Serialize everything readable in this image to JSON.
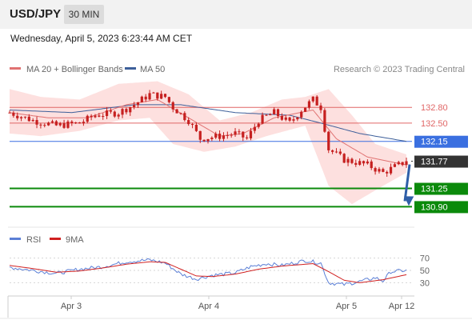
{
  "header": {
    "pair": "USD/JPY",
    "timeframe": "30 MIN",
    "datetime": "Wednesday, April 5, 2023 6:23:44 AM CET"
  },
  "legend": {
    "ma20": "MA 20 + Bollinger Bands",
    "ma50": "MA 50",
    "credit": "Research © 2023 Trading Central",
    "rsi": "RSI",
    "rsi_ma": "9MA"
  },
  "colors": {
    "candle": "#c62020",
    "ma20": "#e07272",
    "ma50": "#3d5f9a",
    "bollinger_fill": "#fde0df",
    "resistance": "#e06666",
    "pivot": "#3a6fe0",
    "support": "#0b8a0b",
    "current": "#333333",
    "forecast_arrow": "#2f5fa8",
    "rsi": "#5b7fd6",
    "rsi_ma": "#d02020"
  },
  "chart_data": [
    {
      "type": "candlestick",
      "title": "USD/JPY 30 MIN",
      "y_range": [
        130.6,
        133.4
      ],
      "x_ticks": [
        "Apr 3",
        "Apr 4",
        "Apr 5",
        "Apr 12"
      ],
      "price_segments": [
        [
          0,
          132.7
        ],
        [
          6,
          132.55
        ],
        [
          12,
          132.45
        ],
        [
          18,
          132.5
        ],
        [
          22,
          132.65
        ],
        [
          28,
          132.7
        ],
        [
          32,
          132.85
        ],
        [
          36,
          133.05
        ],
        [
          40,
          133.0
        ],
        [
          42,
          132.8
        ],
        [
          46,
          132.55
        ],
        [
          49,
          132.2
        ],
        [
          54,
          132.25
        ],
        [
          58,
          132.3
        ],
        [
          61,
          132.2
        ],
        [
          64,
          132.55
        ],
        [
          68,
          132.7
        ],
        [
          72,
          132.5
        ],
        [
          75,
          132.75
        ],
        [
          78,
          132.95
        ],
        [
          80,
          132.8
        ],
        [
          82,
          132.0
        ],
        [
          86,
          131.8
        ],
        [
          92,
          131.7
        ],
        [
          96,
          131.55
        ],
        [
          100,
          131.7
        ],
        [
          102,
          131.77
        ]
      ],
      "price_noise": 0.07,
      "ma20": [
        [
          0,
          132.7
        ],
        [
          10,
          132.6
        ],
        [
          20,
          132.6
        ],
        [
          30,
          132.85
        ],
        [
          38,
          132.95
        ],
        [
          46,
          132.6
        ],
        [
          54,
          132.25
        ],
        [
          60,
          132.3
        ],
        [
          68,
          132.6
        ],
        [
          78,
          132.75
        ],
        [
          84,
          132.2
        ],
        [
          92,
          131.85
        ],
        [
          102,
          131.7
        ]
      ],
      "bollinger_upper": [
        [
          0,
          133.15
        ],
        [
          8,
          133.0
        ],
        [
          18,
          132.95
        ],
        [
          28,
          133.25
        ],
        [
          38,
          133.3
        ],
        [
          46,
          133.05
        ],
        [
          54,
          132.55
        ],
        [
          62,
          132.7
        ],
        [
          70,
          132.95
        ],
        [
          76,
          133.0
        ],
        [
          82,
          133.15
        ],
        [
          88,
          132.65
        ],
        [
          94,
          132.1
        ],
        [
          102,
          131.9
        ]
      ],
      "bollinger_lower": [
        [
          0,
          132.3
        ],
        [
          8,
          132.25
        ],
        [
          18,
          132.35
        ],
        [
          28,
          132.55
        ],
        [
          36,
          132.6
        ],
        [
          42,
          132.1
        ],
        [
          50,
          131.95
        ],
        [
          58,
          132.05
        ],
        [
          66,
          132.25
        ],
        [
          76,
          132.45
        ],
        [
          82,
          131.3
        ],
        [
          88,
          130.95
        ],
        [
          96,
          131.3
        ],
        [
          102,
          131.55
        ]
      ],
      "ma50": [
        [
          0,
          132.75
        ],
        [
          16,
          132.7
        ],
        [
          32,
          132.85
        ],
        [
          44,
          132.85
        ],
        [
          58,
          132.7
        ],
        [
          72,
          132.65
        ],
        [
          80,
          132.5
        ],
        [
          90,
          132.3
        ],
        [
          102,
          132.15
        ]
      ],
      "levels": [
        {
          "value": 132.8,
          "label": "132.80",
          "kind": "resistance"
        },
        {
          "value": 132.5,
          "label": "132.50",
          "kind": "resistance"
        },
        {
          "value": 132.15,
          "label": "132.15",
          "kind": "pivot"
        },
        {
          "value": 131.77,
          "label": "131.77",
          "kind": "current"
        },
        {
          "value": 131.25,
          "label": "131.25",
          "kind": "support"
        },
        {
          "value": 130.9,
          "label": "130.90",
          "kind": "support"
        }
      ],
      "forecast": {
        "from": 131.77,
        "to": 130.9
      }
    },
    {
      "type": "line",
      "title": "RSI",
      "y_ticks": [
        70,
        50,
        30
      ],
      "y_range": [
        15,
        85
      ],
      "rsi_segments": [
        [
          0,
          55
        ],
        [
          6,
          50
        ],
        [
          12,
          45
        ],
        [
          18,
          52
        ],
        [
          24,
          56
        ],
        [
          30,
          64
        ],
        [
          36,
          67
        ],
        [
          40,
          62
        ],
        [
          44,
          44
        ],
        [
          48,
          36
        ],
        [
          52,
          42
        ],
        [
          58,
          46
        ],
        [
          62,
          56
        ],
        [
          66,
          61
        ],
        [
          70,
          58
        ],
        [
          76,
          66
        ],
        [
          80,
          62
        ],
        [
          82,
          30
        ],
        [
          86,
          27
        ],
        [
          90,
          32
        ],
        [
          94,
          38
        ],
        [
          96,
          33
        ],
        [
          98,
          48
        ],
        [
          102,
          50
        ]
      ],
      "rsi_ma": [
        [
          0,
          58
        ],
        [
          6,
          53
        ],
        [
          12,
          47
        ],
        [
          18,
          49
        ],
        [
          24,
          54
        ],
        [
          30,
          60
        ],
        [
          36,
          64
        ],
        [
          40,
          63
        ],
        [
          44,
          52
        ],
        [
          48,
          41
        ],
        [
          52,
          40
        ],
        [
          58,
          44
        ],
        [
          64,
          52
        ],
        [
          70,
          57
        ],
        [
          78,
          61
        ],
        [
          82,
          48
        ],
        [
          86,
          34
        ],
        [
          90,
          30
        ],
        [
          96,
          35
        ],
        [
          102,
          43
        ]
      ],
      "rsi_noise": 3
    }
  ]
}
